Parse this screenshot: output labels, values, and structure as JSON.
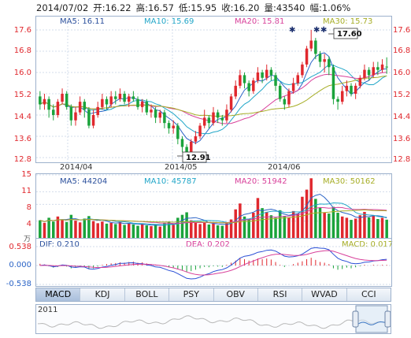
{
  "info": {
    "date": "2014/07/02",
    "open": "开:16.22",
    "high": "高:16.57",
    "low": "低:15.95",
    "close": "收:16.20",
    "volume": "量:43540",
    "change": "幅:1.06%"
  },
  "price_ma": {
    "ma5": "MA5: 16.11",
    "ma10": "MA10: 15.69",
    "ma20": "MA20: 15.81",
    "ma30": "MA30: 15.73"
  },
  "volume_ma": {
    "ma5": "MA5: 44204",
    "ma10": "MA10: 45787",
    "ma20": "MA20: 51942",
    "ma30": "MA30: 50162"
  },
  "macd_info": {
    "dif": "DIF: 0.210",
    "dea": "DEA: 0.202",
    "macd": "MACD: 0.017"
  },
  "price_axis": [
    "17.6",
    "16.8",
    "16.0",
    "15.2",
    "14.4",
    "13.6",
    "12.8"
  ],
  "volume_axis": [
    "15",
    "11",
    "8",
    "4"
  ],
  "volume_unit": "万",
  "macd_axis": [
    "0.538",
    "0.000",
    "-0.538"
  ],
  "date_labels": [
    "2014/04",
    "2014/05",
    "2014/06"
  ],
  "high_callout": "17.60",
  "low_callout": "12.91",
  "tabs": [
    "MACD",
    "KDJ",
    "BOLL",
    "PSY",
    "OBV",
    "RSI",
    "WVAD",
    "CCI"
  ],
  "active_tab": "MACD",
  "navigator": {
    "year": "2011"
  },
  "colors": {
    "up": "#e0282e",
    "down": "#1aa33b",
    "ma5": "#2a63c6",
    "ma10": "#21a6c8",
    "ma20": "#d8409a",
    "ma30": "#a6ad25"
  },
  "chart_data": {
    "type": "candlestick",
    "title": "",
    "ylim": [
      12.8,
      17.6
    ],
    "highest": 17.6,
    "lowest": 12.91,
    "candles": [
      [
        15.1,
        14.8,
        15.3,
        14.6
      ],
      [
        14.8,
        15.0,
        15.2,
        14.6
      ],
      [
        15.0,
        14.6,
        15.1,
        14.3
      ],
      [
        14.6,
        14.4,
        14.8,
        14.2
      ],
      [
        14.4,
        14.9,
        15.0,
        14.3
      ],
      [
        14.9,
        15.2,
        15.4,
        14.8
      ],
      [
        15.2,
        14.7,
        15.3,
        14.6
      ],
      [
        14.7,
        14.2,
        14.8,
        14.0
      ],
      [
        14.2,
        14.5,
        14.7,
        14.0
      ],
      [
        14.5,
        14.9,
        15.1,
        14.4
      ],
      [
        14.9,
        14.6,
        15.0,
        14.3
      ],
      [
        14.6,
        14.0,
        14.7,
        13.9
      ],
      [
        14.0,
        14.4,
        14.6,
        13.9
      ],
      [
        14.4,
        14.7,
        14.9,
        14.3
      ],
      [
        14.7,
        15.0,
        15.2,
        14.6
      ],
      [
        15.0,
        14.8,
        15.1,
        14.6
      ],
      [
        14.8,
        15.1,
        15.3,
        14.7
      ],
      [
        15.1,
        15.0,
        15.3,
        14.8
      ],
      [
        15.0,
        15.2,
        15.4,
        14.9
      ],
      [
        15.2,
        14.9,
        15.3,
        14.8
      ],
      [
        14.9,
        15.1,
        15.2,
        14.7
      ],
      [
        15.1,
        15.0,
        15.3,
        14.9
      ],
      [
        15.0,
        14.7,
        15.1,
        14.6
      ],
      [
        14.7,
        14.9,
        15.0,
        14.5
      ],
      [
        14.9,
        14.5,
        15.0,
        14.4
      ],
      [
        14.5,
        14.6,
        14.8,
        14.3
      ],
      [
        14.6,
        14.3,
        14.7,
        14.1
      ],
      [
        14.3,
        14.5,
        14.6,
        14.1
      ],
      [
        14.5,
        14.1,
        14.6,
        13.9
      ],
      [
        14.1,
        13.9,
        14.2,
        13.7
      ],
      [
        13.9,
        14.0,
        14.2,
        13.7
      ],
      [
        14.0,
        13.5,
        14.1,
        13.3
      ],
      [
        13.5,
        13.2,
        13.6,
        13.0
      ],
      [
        13.2,
        13.0,
        13.3,
        12.91
      ],
      [
        13.0,
        13.4,
        13.5,
        12.95
      ],
      [
        13.4,
        13.6,
        13.8,
        13.3
      ],
      [
        13.6,
        14.0,
        14.1,
        13.5
      ],
      [
        14.0,
        14.3,
        14.6,
        13.9
      ],
      [
        14.3,
        14.1,
        14.4,
        13.9
      ],
      [
        14.1,
        14.5,
        14.7,
        14.0
      ],
      [
        14.5,
        14.3,
        14.6,
        14.1
      ],
      [
        14.3,
        14.2,
        14.4,
        14.0
      ],
      [
        14.2,
        14.6,
        14.8,
        14.1
      ],
      [
        14.6,
        15.1,
        15.2,
        14.5
      ],
      [
        15.1,
        15.5,
        15.7,
        15.0
      ],
      [
        15.5,
        15.9,
        16.1,
        15.4
      ],
      [
        15.9,
        15.6,
        16.0,
        15.4
      ],
      [
        15.6,
        15.3,
        15.7,
        15.1
      ],
      [
        15.3,
        15.7,
        15.8,
        15.2
      ],
      [
        15.7,
        16.0,
        16.2,
        15.6
      ],
      [
        16.0,
        15.8,
        16.1,
        15.6
      ],
      [
        15.8,
        16.1,
        16.3,
        15.7
      ],
      [
        16.1,
        15.9,
        16.2,
        15.7
      ],
      [
        15.9,
        15.5,
        16.0,
        15.3
      ],
      [
        15.5,
        15.0,
        15.6,
        14.9
      ],
      [
        15.0,
        14.8,
        15.1,
        14.6
      ],
      [
        14.8,
        15.3,
        15.4,
        14.7
      ],
      [
        15.3,
        15.6,
        15.8,
        15.2
      ],
      [
        15.6,
        15.9,
        16.0,
        15.5
      ],
      [
        15.9,
        16.3,
        16.4,
        15.8
      ],
      [
        16.3,
        16.9,
        17.0,
        16.2
      ],
      [
        16.9,
        17.2,
        17.6,
        16.8
      ],
      [
        17.2,
        16.7,
        17.3,
        16.5
      ],
      [
        16.7,
        16.4,
        16.8,
        16.2
      ],
      [
        16.4,
        16.5,
        16.7,
        16.0
      ],
      [
        16.5,
        16.2,
        16.6,
        15.9
      ],
      [
        16.2,
        15.0,
        16.3,
        14.8
      ],
      [
        15.0,
        14.9,
        15.1,
        14.6
      ],
      [
        14.9,
        15.3,
        15.5,
        14.8
      ],
      [
        15.3,
        15.5,
        15.7,
        15.1
      ],
      [
        15.5,
        15.2,
        15.6,
        15.1
      ],
      [
        15.2,
        15.5,
        15.6,
        15.0
      ],
      [
        15.5,
        15.8,
        15.9,
        15.4
      ],
      [
        15.8,
        16.1,
        16.3,
        15.7
      ],
      [
        16.1,
        15.9,
        16.2,
        15.7
      ],
      [
        15.9,
        16.2,
        16.4,
        15.8
      ],
      [
        16.2,
        16.1,
        16.4,
        15.9
      ],
      [
        16.1,
        16.3,
        16.5,
        16.0
      ],
      [
        16.22,
        16.2,
        16.57,
        15.95
      ]
    ],
    "volumes": [
      4.2,
      3.6,
      4.8,
      3.9,
      5.1,
      4.4,
      3.8,
      5.5,
      4.1,
      3.7,
      4.6,
      5.2,
      4.0,
      3.5,
      3.9,
      3.4,
      3.6,
      3.3,
      3.8,
      3.1,
      3.5,
      3.2,
      2.9,
      3.4,
      3.0,
      2.8,
      3.2,
      2.7,
      3.6,
      3.9,
      3.1,
      4.8,
      5.5,
      6.1,
      4.2,
      3.6,
      3.3,
      3.8,
      3.2,
      3.4,
      3.0,
      2.9,
      3.5,
      4.4,
      6.8,
      8.2,
      5.1,
      4.6,
      6.0,
      9.5,
      7.1,
      6.2,
      5.4,
      4.8,
      6.6,
      5.2,
      4.9,
      6.4,
      5.8,
      9.8,
      11.5,
      14.2,
      9.3,
      7.2,
      6.1,
      5.8,
      7.4,
      6.0,
      5.1,
      4.8,
      4.3,
      4.6,
      5.4,
      6.2,
      4.9,
      5.3,
      4.5,
      4.8,
      4.35
    ],
    "macd_hist": [
      0.05,
      0.03,
      -0.02,
      -0.06,
      -0.04,
      0.02,
      -0.03,
      -0.08,
      -0.06,
      -0.02,
      -0.04,
      -0.1,
      -0.08,
      -0.03,
      0.02,
      0.04,
      0.06,
      0.07,
      0.09,
      0.08,
      0.1,
      0.11,
      0.08,
      0.09,
      0.06,
      0.04,
      0.02,
      0.01,
      -0.02,
      -0.05,
      -0.06,
      -0.1,
      -0.14,
      -0.18,
      -0.16,
      -0.12,
      -0.08,
      -0.04,
      -0.05,
      -0.02,
      -0.03,
      -0.04,
      0.02,
      0.08,
      0.14,
      0.2,
      0.18,
      0.14,
      0.16,
      0.2,
      0.18,
      0.2,
      0.17,
      0.1,
      0.02,
      -0.04,
      0.0,
      0.04,
      0.08,
      0.12,
      0.18,
      0.22,
      0.16,
      0.1,
      0.08,
      0.04,
      -0.08,
      -0.12,
      -0.1,
      -0.06,
      -0.08,
      -0.05,
      -0.02,
      0.02,
      0.0,
      0.02,
      0.01,
      0.02,
      0.017
    ]
  }
}
